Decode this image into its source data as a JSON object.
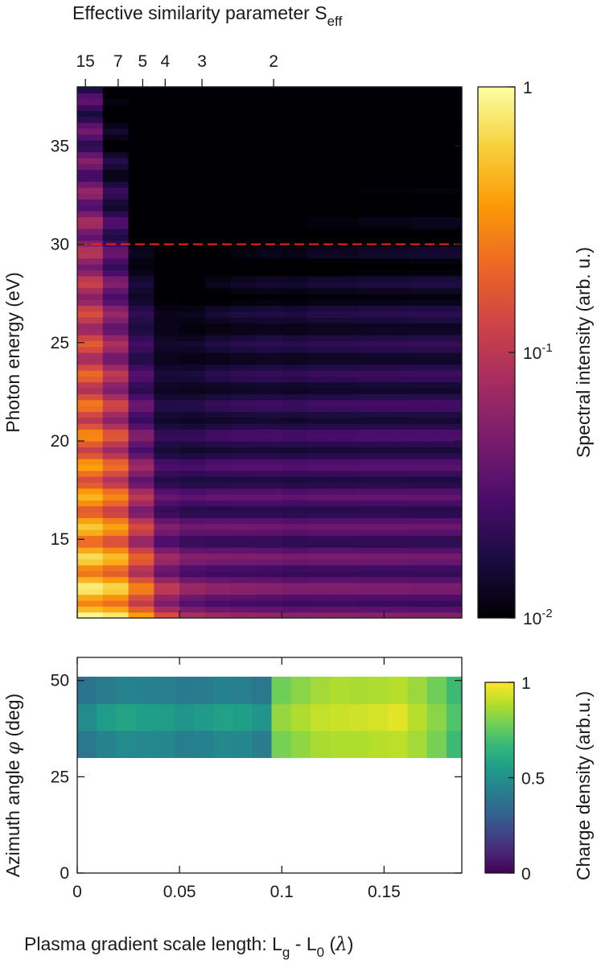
{
  "chart_data": [
    {
      "type": "heatmap",
      "name": "spectrum",
      "top_axis": {
        "label": "Effective similarity parameter S",
        "label_subscript": "eff",
        "ticks": [
          {
            "label": "15",
            "x": 0.004
          },
          {
            "label": "7",
            "x": 0.02
          },
          {
            "label": "5",
            "x": 0.032
          },
          {
            "label": "4",
            "x": 0.043
          },
          {
            "label": "3",
            "x": 0.061
          },
          {
            "label": "2",
            "x": 0.096
          }
        ]
      },
      "xlim": [
        0,
        0.188
      ],
      "xticks": [
        0,
        0.05,
        0.1,
        0.15
      ],
      "ylabel": "Photon energy (eV)",
      "ylim": [
        11,
        38
      ],
      "yticks": [
        15,
        20,
        25,
        30,
        35
      ],
      "reference_line": {
        "y": 30,
        "color": "#e8221a",
        "style": "dashed"
      },
      "colorbar": {
        "label": "Spectral intensity (arb. u.)",
        "scale": "log",
        "range": [
          0.01,
          1
        ],
        "ticks": [
          {
            "value": 1,
            "base": "1",
            "exp": ""
          },
          {
            "value": 0.1,
            "base": "10",
            "exp": "-1"
          },
          {
            "value": 0.01,
            "base": "10",
            "exp": "-2"
          }
        ],
        "colormap": [
          "#000004",
          "#1b0c41",
          "#4a0c6b",
          "#781c6d",
          "#a52c60",
          "#cf4446",
          "#ed6925",
          "#fb9b06",
          "#f7d13d",
          "#fcffa4"
        ]
      },
      "x_bins": [
        0,
        0.0125,
        0.025,
        0.0375,
        0.05,
        0.0625,
        0.075,
        0.0875,
        0.1,
        0.1125,
        0.125,
        0.1375,
        0.15,
        0.1625,
        0.175,
        0.188
      ],
      "harmonics_eV": [
        11.0,
        12.55,
        14.1,
        15.65,
        17.2,
        18.75,
        20.3,
        21.85,
        23.4,
        24.95,
        26.5,
        28.05,
        29.6,
        31.15,
        32.7,
        34.25,
        35.8,
        37.35
      ],
      "column_peak": [
        1.0,
        0.85,
        0.4,
        0.15,
        0.08,
        0.065,
        0.06,
        0.055,
        0.05,
        0.05,
        0.05,
        0.048,
        0.048,
        0.045,
        0.045
      ],
      "column_decay_eV": [
        7.5,
        5.5,
        4.0,
        3.5,
        5.0,
        7.0,
        8.0,
        9.0,
        9.0,
        10.0,
        10.0,
        11.0,
        11.0,
        12.0,
        12.0
      ],
      "floor": [
        0.03,
        0.022,
        0.017,
        0.014,
        0.012,
        0.011,
        0.011,
        0.011,
        0.011,
        0.011,
        0.011,
        0.011,
        0.011,
        0.011,
        0.011
      ]
    },
    {
      "type": "heatmap",
      "name": "charge",
      "xlabel": "Plasma gradient scale length: L",
      "xlabel_parts": [
        "L",
        "g",
        " - L",
        "0",
        " (",
        "λ",
        ")"
      ],
      "xlim": [
        0,
        0.188
      ],
      "xticks": [
        0,
        0.05,
        0.1,
        0.15
      ],
      "xtick_labels": [
        "0",
        "0.05",
        "0.1",
        "0.15"
      ],
      "ylabel": "Azimuth angle ",
      "ylabel_symbol": "φ",
      "ylabel_unit": " (deg)",
      "ylim": [
        0,
        56
      ],
      "yticks": [
        0,
        25,
        50
      ],
      "band_y": [
        30,
        51
      ],
      "x_bins": [
        0,
        0.0095,
        0.019,
        0.0285,
        0.038,
        0.0475,
        0.057,
        0.0665,
        0.076,
        0.0855,
        0.095,
        0.1045,
        0.114,
        0.1235,
        0.133,
        0.1425,
        0.152,
        0.1615,
        0.171,
        0.1805,
        0.188
      ],
      "row_top": [
        0.38,
        0.42,
        0.45,
        0.44,
        0.43,
        0.41,
        0.42,
        0.44,
        0.43,
        0.4,
        0.78,
        0.82,
        0.86,
        0.88,
        0.87,
        0.88,
        0.89,
        0.85,
        0.78,
        0.68
      ],
      "row_mid": [
        0.48,
        0.55,
        0.58,
        0.56,
        0.55,
        0.52,
        0.54,
        0.57,
        0.56,
        0.52,
        0.84,
        0.88,
        0.91,
        0.92,
        0.93,
        0.94,
        0.96,
        0.89,
        0.82,
        0.72
      ],
      "row_bot": [
        0.4,
        0.45,
        0.48,
        0.47,
        0.46,
        0.43,
        0.44,
        0.47,
        0.46,
        0.42,
        0.79,
        0.83,
        0.87,
        0.88,
        0.88,
        0.89,
        0.9,
        0.86,
        0.79,
        0.68
      ],
      "colorbar": {
        "label": "Charge density (arb.u.)",
        "range": [
          0,
          1
        ],
        "ticks": [
          {
            "value": 1,
            "label": "1"
          },
          {
            "value": 0.5,
            "label": "0.5"
          },
          {
            "value": 0,
            "label": "0"
          }
        ],
        "colormap": [
          "#440154",
          "#482878",
          "#3e4989",
          "#31688e",
          "#26828e",
          "#1f9e89",
          "#35b779",
          "#6ece58",
          "#b5de2b",
          "#fde725"
        ]
      }
    }
  ]
}
